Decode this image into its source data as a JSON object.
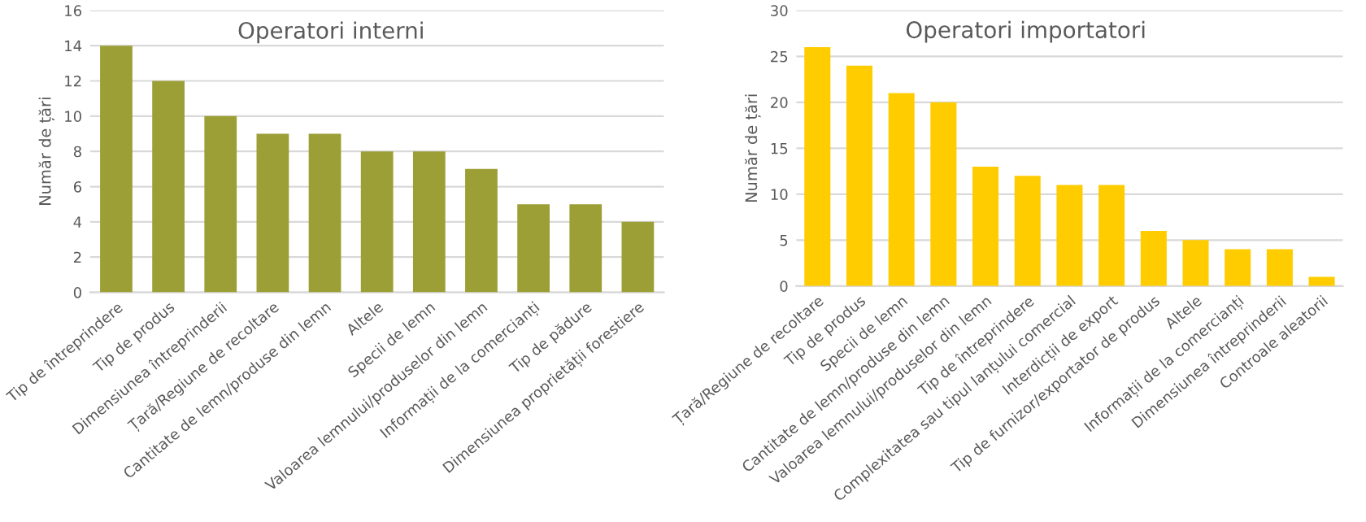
{
  "chart_data": [
    {
      "type": "bar",
      "title": "Operatori interni",
      "ylabel": "Număr de țări",
      "categories": [
        "Tip de întreprindere",
        "Tip de produs",
        "Dimensiunea întreprinderii",
        "Țară/Regiune de recoltare",
        "Cantitate de lemn/produse din lemn",
        "Altele",
        "Specii de lemn",
        "Valoarea lemnului/produselor din lemn",
        "Informații de la comercianți",
        "Tip de pădure",
        "Dimensiunea proprietății forestiere"
      ],
      "values": [
        14,
        12,
        10,
        9,
        9,
        8,
        8,
        7,
        5,
        5,
        4
      ],
      "color": "#9c9f36",
      "ylim": [
        0,
        16
      ],
      "yticks": [
        0,
        2,
        4,
        6,
        8,
        10,
        12,
        14,
        16
      ],
      "grid": "y"
    },
    {
      "type": "bar",
      "title": "Operatori importatori",
      "ylabel": "Număr de țări",
      "categories": [
        "Țară/Regiune de recoltare",
        "Tip de produs",
        "Specii de lemn",
        "Cantitate de lemn/produse din lemn",
        "Valoarea lemnului/produselor din lemn",
        "Tip de întreprindere",
        "Complexitatea sau tipul lanțului comercial",
        "Interdicții de export",
        "Tip de furnizor/exportator de produs",
        "Altele",
        "Informații de la comercianți",
        "Dimensiunea întreprinderii",
        "Controale aleatorii"
      ],
      "values": [
        26,
        24,
        21,
        20,
        13,
        12,
        11,
        11,
        6,
        5,
        4,
        4,
        1
      ],
      "color": "#ffcc00",
      "ylim": [
        0,
        30
      ],
      "yticks": [
        0,
        5,
        10,
        15,
        20,
        25,
        30
      ],
      "grid": "y"
    }
  ]
}
